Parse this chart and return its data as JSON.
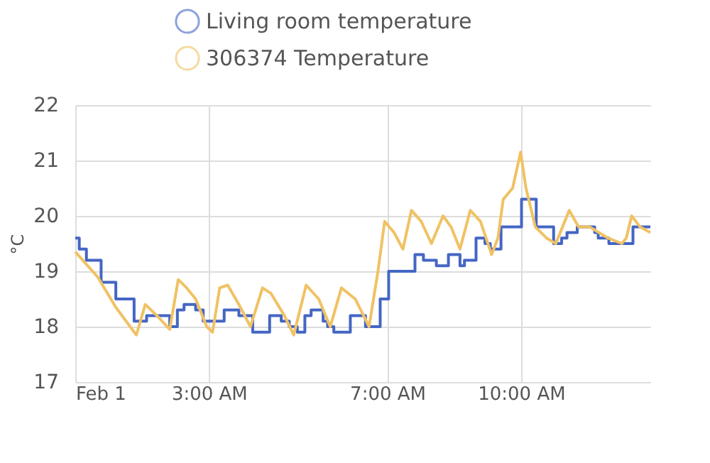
{
  "chart_data": {
    "type": "line",
    "ylabel": "°C",
    "xlim": [
      0,
      12.9
    ],
    "ylim": [
      17,
      22
    ],
    "xticks": [
      {
        "value": 0,
        "label": "Feb 1"
      },
      {
        "value": 3,
        "label": "3:00 AM"
      },
      {
        "value": 7,
        "label": "7:00 AM"
      },
      {
        "value": 10,
        "label": "10:00 AM"
      }
    ],
    "yticks": [
      17,
      18,
      19,
      20,
      21,
      22
    ],
    "grid": true,
    "legend": "top",
    "marker": "none",
    "line_style": "solid",
    "series": [
      {
        "name": "Living room temperature",
        "type": "step",
        "color": "#4466c4",
        "x": [
          0,
          0.09,
          0.25,
          0.58,
          0.91,
          1.32,
          1.6,
          2.12,
          2.29,
          2.44,
          2.7,
          2.87,
          3.34,
          3.67,
          3.98,
          4.36,
          4.62,
          4.8,
          4.98,
          5.15,
          5.29,
          5.56,
          5.66,
          5.8,
          6.17,
          6.51,
          6.84,
          7.03,
          7.62,
          7.81,
          8.1,
          8.37,
          8.63,
          8.73,
          8.99,
          9.19,
          9.31,
          9.55,
          10.01,
          10.34,
          10.73,
          10.91,
          11.03,
          11.26,
          11.65,
          11.73,
          11.97,
          12.51,
          12.9
        ],
        "values": [
          19.6,
          19.4,
          19.2,
          18.8,
          18.5,
          18.1,
          18.2,
          18.0,
          18.3,
          18.4,
          18.3,
          18.1,
          18.3,
          18.2,
          17.9,
          18.2,
          18.1,
          18.0,
          17.9,
          18.2,
          18.3,
          18.1,
          18.0,
          17.9,
          18.2,
          18.0,
          18.5,
          19.0,
          19.3,
          19.2,
          19.1,
          19.3,
          19.1,
          19.2,
          19.6,
          19.5,
          19.4,
          19.8,
          20.3,
          19.8,
          19.5,
          19.6,
          19.7,
          19.8,
          19.7,
          19.6,
          19.5,
          19.8,
          19.8
        ]
      },
      {
        "name": "306374 Temperature",
        "color": "#f0c264",
        "x": [
          0,
          0.5,
          0.91,
          1.37,
          1.57,
          1.83,
          2.12,
          2.31,
          2.5,
          2.7,
          2.95,
          3.08,
          3.24,
          3.42,
          3.67,
          3.93,
          4.2,
          4.39,
          4.69,
          4.9,
          5.18,
          5.46,
          5.72,
          5.97,
          6.28,
          6.59,
          6.79,
          6.94,
          7.15,
          7.35,
          7.54,
          7.76,
          7.99,
          8.25,
          8.43,
          8.63,
          8.86,
          9.09,
          9.34,
          9.48,
          9.6,
          9.81,
          9.99,
          10.11,
          10.32,
          10.57,
          10.78,
          10.98,
          11.08,
          11.29,
          11.54,
          11.95,
          12.26,
          12.36,
          12.48,
          12.67,
          12.9
        ],
        "values": [
          19.35,
          18.9,
          18.35,
          17.85,
          18.4,
          18.2,
          17.95,
          18.85,
          18.7,
          18.5,
          18.0,
          17.9,
          18.7,
          18.75,
          18.4,
          18.0,
          18.7,
          18.6,
          18.2,
          17.85,
          18.75,
          18.5,
          18.0,
          18.7,
          18.5,
          18.0,
          19.0,
          19.9,
          19.7,
          19.4,
          20.1,
          19.9,
          19.5,
          20.0,
          19.8,
          19.4,
          20.1,
          19.9,
          19.3,
          19.6,
          20.3,
          20.5,
          21.15,
          20.5,
          19.8,
          19.6,
          19.5,
          19.9,
          20.1,
          19.8,
          19.8,
          19.6,
          19.5,
          19.6,
          20.0,
          19.8,
          19.7
        ]
      }
    ]
  }
}
